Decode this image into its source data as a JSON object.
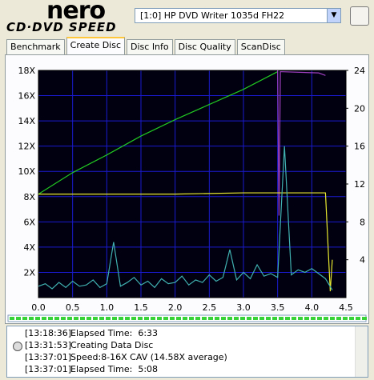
{
  "header": {
    "logo": "nero",
    "product": "CD·DVD SPEED",
    "device": "[1:0]  HP DVD Writer 1035d FH22"
  },
  "tabs": [
    "Benchmark",
    "Create Disc",
    "Disc Info",
    "Disc Quality",
    "ScanDisc"
  ],
  "active_tab": 1,
  "chart_data": {
    "type": "line",
    "xlim": [
      0,
      4.5
    ],
    "xticks": [
      {
        "value": 0,
        "label": "0.0"
      },
      0.5,
      {
        "value": 1,
        "label": "1.0"
      },
      1.5,
      {
        "value": 2,
        "label": "2.0"
      },
      2.5,
      {
        "value": 3,
        "label": "3.0"
      },
      3.5,
      {
        "value": 4,
        "label": "4.0"
      },
      4.5
    ],
    "ylim": [
      0,
      18
    ],
    "yticks": [
      {
        "value": 2,
        "label": "2X"
      },
      {
        "value": 4,
        "label": "4X"
      },
      {
        "value": 6,
        "label": "6X"
      },
      {
        "value": 8,
        "label": "8X"
      },
      {
        "value": 10,
        "label": "10X"
      },
      {
        "value": 12,
        "label": "12X"
      },
      {
        "value": 14,
        "label": "14X"
      },
      {
        "value": 16,
        "label": "16X"
      },
      {
        "value": 18,
        "label": "18X"
      }
    ],
    "y2lim": [
      0,
      24
    ],
    "y2ticks": [
      4,
      8,
      12,
      16,
      20,
      24
    ],
    "grid": true,
    "background": "#000010",
    "grid_color": "#1a1ad0",
    "series": [
      {
        "color": "#22c822",
        "x": [
          0,
          0.5,
          1,
          1.5,
          2,
          2.5,
          3,
          3.5
        ],
        "values": [
          8.2,
          9.9,
          11.3,
          12.8,
          14.1,
          15.3,
          16.5,
          17.9
        ]
      },
      {
        "color": "#a040c0",
        "x": [
          3.5,
          3.52,
          3.54,
          4.1,
          4.2
        ],
        "values": [
          18,
          6.5,
          17.9,
          17.8,
          17.6
        ]
      },
      {
        "color": "#e8e830",
        "x": [
          0,
          1,
          2,
          3,
          3.5,
          4.2,
          4.27,
          4.3
        ],
        "values": [
          8.2,
          8.2,
          8.2,
          8.3,
          8.3,
          8.3,
          0.5,
          3
        ]
      },
      {
        "color": "#40b0b0",
        "x": [
          0,
          0.1,
          0.2,
          0.3,
          0.4,
          0.5,
          0.6,
          0.7,
          0.8,
          0.9,
          1,
          1.1,
          1.2,
          1.3,
          1.4,
          1.5,
          1.6,
          1.7,
          1.8,
          1.9,
          2,
          2.1,
          2.2,
          2.3,
          2.4,
          2.5,
          2.6,
          2.7,
          2.8,
          2.9,
          3,
          3.1,
          3.2,
          3.3,
          3.4,
          3.5,
          3.6,
          3.7,
          3.8,
          3.9,
          4,
          4.1,
          4.2,
          4.3
        ],
        "values": [
          0.9,
          1.1,
          0.7,
          1.2,
          0.8,
          1.3,
          0.9,
          1.0,
          1.4,
          0.8,
          1.1,
          4.4,
          0.9,
          1.2,
          1.6,
          1.0,
          1.3,
          0.8,
          1.5,
          1.1,
          1.2,
          1.7,
          1.0,
          1.4,
          1.2,
          1.8,
          1.3,
          1.6,
          3.8,
          1.4,
          2.0,
          1.5,
          2.6,
          1.7,
          1.9,
          1.6,
          12,
          1.8,
          2.2,
          2.0,
          2.3,
          1.9,
          1.5,
          0.6
        ]
      }
    ]
  },
  "log": [
    [
      "[13:18:36]",
      "Elapsed Time:  6:33"
    ],
    [
      "[13:31:53]",
      "Creating Data Disc"
    ],
    [
      "[13:37:01]",
      "Speed:8-16X CAV (14.58X average)"
    ],
    [
      "[13:37:01]",
      "Elapsed Time:  5:08"
    ]
  ]
}
